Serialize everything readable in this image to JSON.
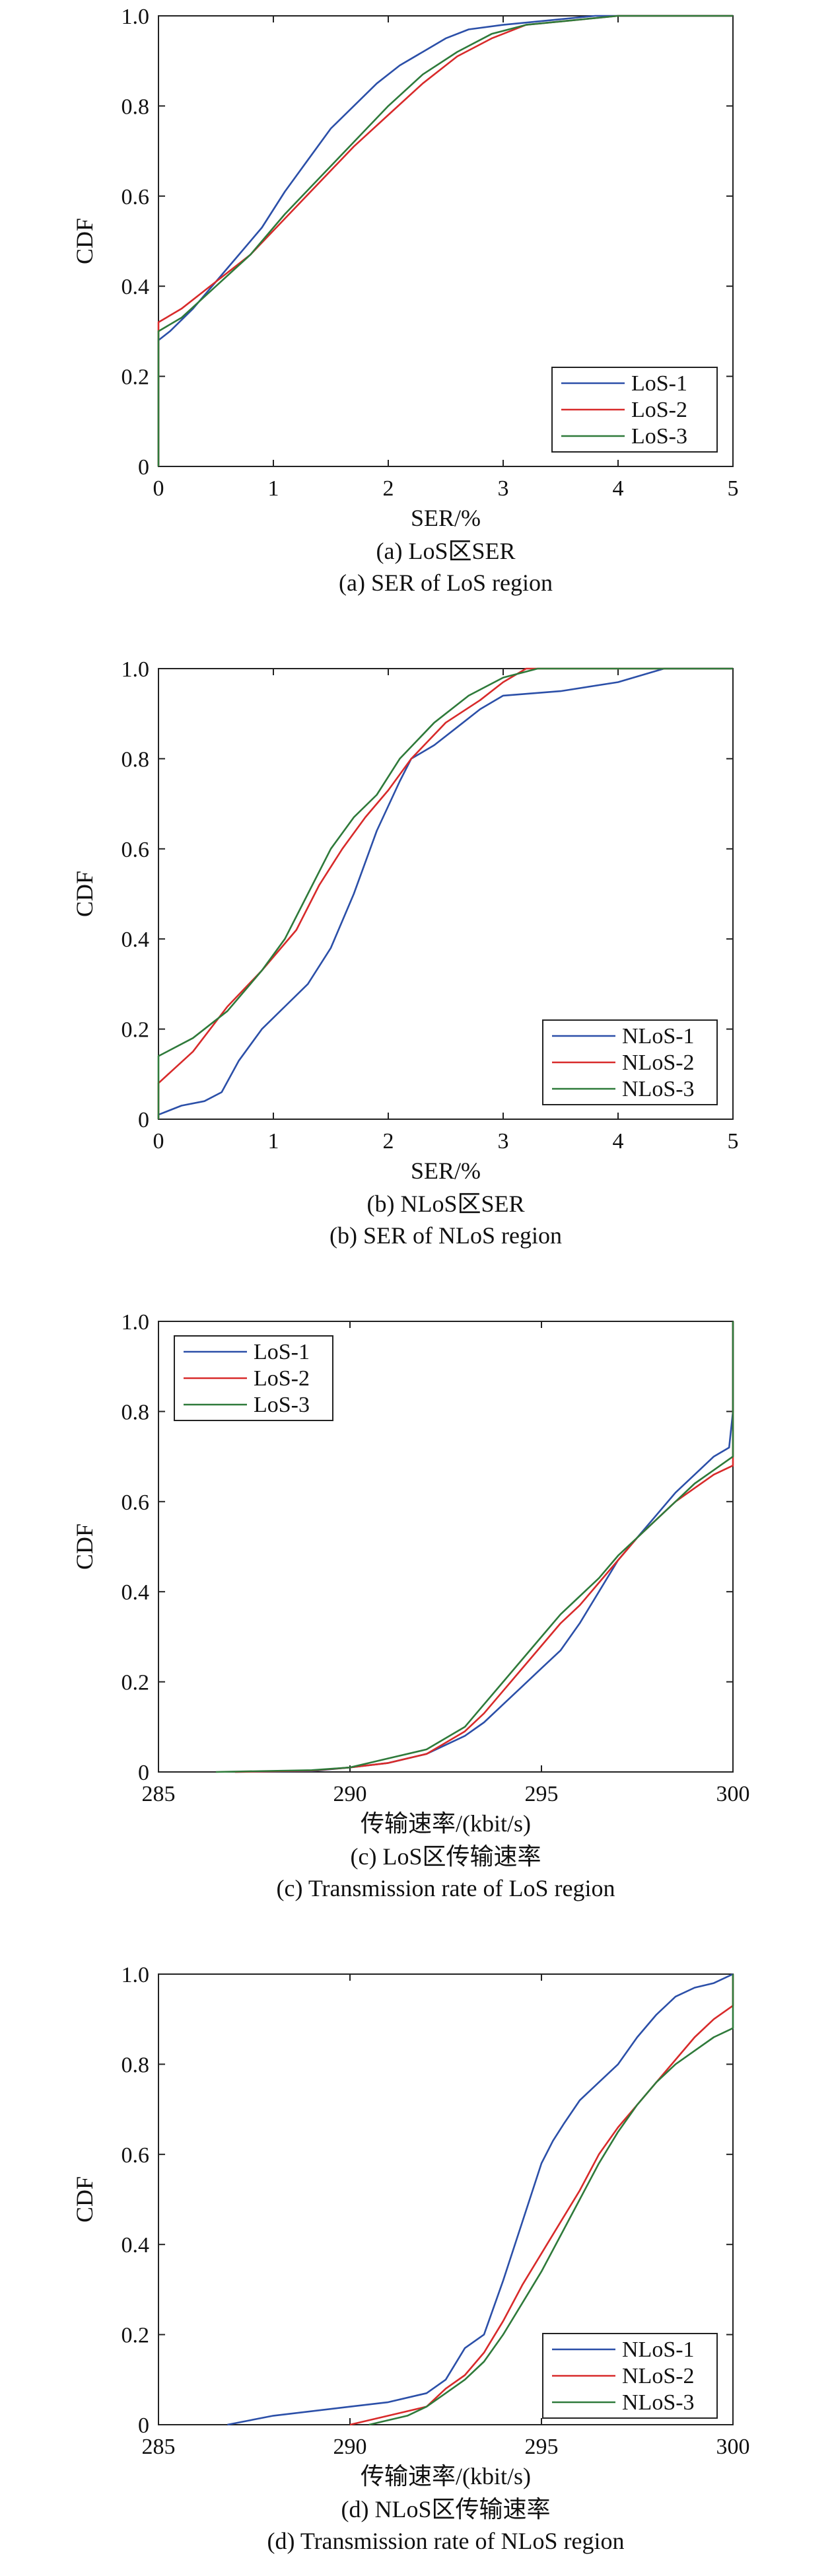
{
  "chart_data": [
    {
      "type": "line",
      "title": "",
      "caption_cn": "(a) LoS区SER",
      "caption_en": "(a) SER of LoS region",
      "xlabel": "SER/%",
      "ylabel": "CDF",
      "xlim": [
        0,
        5
      ],
      "ylim": [
        0,
        1.0
      ],
      "xticks": [
        "0",
        "1",
        "2",
        "3",
        "4",
        "5"
      ],
      "yticks": [
        "0",
        "0.2",
        "0.4",
        "0.6",
        "0.8",
        "1.0"
      ],
      "legend_position": "bottom-right",
      "series": [
        {
          "name": "LoS-1",
          "color": "#2b4fa8",
          "x": [
            0,
            0,
            0.1,
            0.3,
            0.5,
            0.7,
            0.9,
            1.1,
            1.3,
            1.5,
            1.7,
            1.9,
            2.1,
            2.3,
            2.5,
            2.7,
            3.0,
            3.4,
            3.8,
            5.0
          ],
          "y": [
            0,
            0.28,
            0.3,
            0.35,
            0.41,
            0.47,
            0.53,
            0.61,
            0.68,
            0.75,
            0.8,
            0.85,
            0.89,
            0.92,
            0.95,
            0.97,
            0.98,
            0.99,
            1.0,
            1.0
          ]
        },
        {
          "name": "LoS-2",
          "color": "#d82a2a",
          "x": [
            0,
            0,
            0.2,
            0.5,
            0.8,
            1.1,
            1.4,
            1.7,
            2.0,
            2.3,
            2.6,
            2.9,
            3.2,
            3.6,
            4.0,
            5.0
          ],
          "y": [
            0,
            0.32,
            0.35,
            0.41,
            0.47,
            0.55,
            0.63,
            0.71,
            0.78,
            0.85,
            0.91,
            0.95,
            0.98,
            0.99,
            1.0,
            1.0
          ]
        },
        {
          "name": "LoS-3",
          "color": "#2e7a3a",
          "x": [
            0,
            0,
            0.2,
            0.5,
            0.8,
            1.1,
            1.4,
            1.7,
            2.0,
            2.3,
            2.6,
            2.9,
            3.2,
            3.6,
            4.0,
            5.0
          ],
          "y": [
            0,
            0.3,
            0.33,
            0.4,
            0.47,
            0.56,
            0.64,
            0.72,
            0.8,
            0.87,
            0.92,
            0.96,
            0.98,
            0.99,
            1.0,
            1.0
          ]
        }
      ]
    },
    {
      "type": "line",
      "title": "",
      "caption_cn": "(b) NLoS区SER",
      "caption_en": "(b) SER of NLoS region",
      "xlabel": "SER/%",
      "ylabel": "CDF",
      "xlim": [
        0,
        5
      ],
      "ylim": [
        0,
        1.0
      ],
      "xticks": [
        "0",
        "1",
        "2",
        "3",
        "4",
        "5"
      ],
      "yticks": [
        "0",
        "0.2",
        "0.4",
        "0.6",
        "0.8",
        "1.0"
      ],
      "legend_position": "bottom-right",
      "series": [
        {
          "name": "NLoS-1",
          "color": "#2b4fa8",
          "x": [
            0,
            0,
            0.2,
            0.4,
            0.55,
            0.7,
            0.9,
            1.1,
            1.3,
            1.5,
            1.7,
            1.9,
            2.1,
            2.2,
            2.4,
            2.6,
            2.8,
            3.0,
            3.5,
            4.0,
            4.4,
            5.0
          ],
          "y": [
            0,
            0.01,
            0.03,
            0.04,
            0.06,
            0.13,
            0.2,
            0.25,
            0.3,
            0.38,
            0.5,
            0.64,
            0.75,
            0.8,
            0.83,
            0.87,
            0.91,
            0.94,
            0.95,
            0.97,
            1.0,
            1.0
          ]
        },
        {
          "name": "NLoS-2",
          "color": "#d82a2a",
          "x": [
            0,
            0,
            0.3,
            0.6,
            0.9,
            1.2,
            1.4,
            1.6,
            1.8,
            2.0,
            2.2,
            2.5,
            2.8,
            3.0,
            3.2,
            5.0
          ],
          "y": [
            0,
            0.08,
            0.15,
            0.25,
            0.33,
            0.42,
            0.52,
            0.6,
            0.67,
            0.73,
            0.8,
            0.88,
            0.93,
            0.97,
            1.0,
            1.0
          ]
        },
        {
          "name": "NLoS-3",
          "color": "#2e7a3a",
          "x": [
            0,
            0,
            0.3,
            0.6,
            0.9,
            1.1,
            1.3,
            1.5,
            1.7,
            1.9,
            2.1,
            2.4,
            2.7,
            3.0,
            3.3,
            5.0
          ],
          "y": [
            0,
            0.14,
            0.18,
            0.24,
            0.33,
            0.4,
            0.5,
            0.6,
            0.67,
            0.72,
            0.8,
            0.88,
            0.94,
            0.98,
            1.0,
            1.0
          ]
        }
      ]
    },
    {
      "type": "line",
      "title": "",
      "caption_cn": "(c) LoS区传输速率",
      "caption_en": "(c) Transmission rate of LoS region",
      "xlabel": "传输速率/(kbit/s)",
      "ylabel": "CDF",
      "xlim": [
        285,
        300
      ],
      "ylim": [
        0,
        1.0
      ],
      "xticks": [
        "285",
        "290",
        "295",
        "300"
      ],
      "yticks": [
        "0",
        "0.2",
        "0.4",
        "0.6",
        "0.8",
        "1.0"
      ],
      "legend_position": "top-left",
      "series": [
        {
          "name": "LoS-1",
          "color": "#2b4fa8",
          "x": [
            287,
            289,
            290,
            291,
            292,
            293,
            293.5,
            294,
            294.5,
            295,
            295.5,
            296,
            296.5,
            297,
            297.5,
            298,
            298.5,
            299,
            299.5,
            299.9,
            300,
            300
          ],
          "y": [
            0,
            0.002,
            0.01,
            0.02,
            0.04,
            0.08,
            0.11,
            0.15,
            0.19,
            0.23,
            0.27,
            0.33,
            0.4,
            0.47,
            0.52,
            0.57,
            0.62,
            0.66,
            0.7,
            0.72,
            0.8,
            1.0
          ]
        },
        {
          "name": "LoS-2",
          "color": "#d82a2a",
          "x": [
            287,
            289,
            290,
            291,
            292,
            293,
            293.5,
            294,
            294.5,
            295,
            295.5,
            296,
            296.5,
            297,
            297.5,
            298,
            298.5,
            299,
            299.5,
            300,
            300
          ],
          "y": [
            0,
            0.003,
            0.01,
            0.02,
            0.04,
            0.09,
            0.13,
            0.18,
            0.23,
            0.28,
            0.33,
            0.37,
            0.42,
            0.47,
            0.52,
            0.56,
            0.6,
            0.63,
            0.66,
            0.68,
            1.0
          ]
        },
        {
          "name": "LoS-3",
          "color": "#2e7a3a",
          "x": [
            286.5,
            289,
            290,
            291,
            292,
            293,
            293.5,
            294,
            294.5,
            295,
            295.5,
            296,
            296.5,
            297,
            297.5,
            298,
            298.5,
            299,
            299.5,
            300,
            300
          ],
          "y": [
            0,
            0.004,
            0.01,
            0.03,
            0.05,
            0.1,
            0.15,
            0.2,
            0.25,
            0.3,
            0.35,
            0.39,
            0.43,
            0.48,
            0.52,
            0.56,
            0.6,
            0.64,
            0.67,
            0.7,
            1.0
          ]
        }
      ]
    },
    {
      "type": "line",
      "title": "",
      "caption_cn": "(d) NLoS区传输速率",
      "caption_en": "(d) Transmission rate of NLoS region",
      "xlabel": "传输速率/(kbit/s)",
      "ylabel": "CDF",
      "xlim": [
        285,
        300
      ],
      "ylim": [
        0,
        1.0
      ],
      "xticks": [
        "285",
        "290",
        "295",
        "300"
      ],
      "yticks": [
        "0",
        "0.2",
        "0.4",
        "0.6",
        "0.8",
        "1.0"
      ],
      "legend_position": "bottom-right",
      "series": [
        {
          "name": "NLoS-1",
          "color": "#2b4fa8",
          "x": [
            286.8,
            288,
            290,
            291,
            292,
            292.5,
            293,
            293.5,
            294,
            294.5,
            295,
            295.3,
            295.6,
            296,
            296.5,
            297,
            297.5,
            298,
            298.5,
            299,
            299.5,
            300
          ],
          "y": [
            0,
            0.02,
            0.04,
            0.05,
            0.07,
            0.1,
            0.17,
            0.2,
            0.32,
            0.45,
            0.58,
            0.63,
            0.67,
            0.72,
            0.76,
            0.8,
            0.86,
            0.91,
            0.95,
            0.97,
            0.98,
            1.0
          ]
        },
        {
          "name": "NLoS-2",
          "color": "#d82a2a",
          "x": [
            290,
            291,
            292,
            292.5,
            293,
            293.5,
            294,
            294.5,
            295,
            295.5,
            296,
            296.5,
            297,
            297.5,
            298,
            298.5,
            299,
            299.5,
            300,
            300
          ],
          "y": [
            0,
            0.02,
            0.04,
            0.08,
            0.11,
            0.16,
            0.23,
            0.31,
            0.38,
            0.45,
            0.52,
            0.6,
            0.66,
            0.71,
            0.76,
            0.81,
            0.86,
            0.9,
            0.93,
            1.0
          ]
        },
        {
          "name": "NLoS-3",
          "color": "#2e7a3a",
          "x": [
            290.5,
            291.5,
            292,
            292.5,
            293,
            293.5,
            294,
            294.5,
            295,
            295.5,
            296,
            296.5,
            297,
            297.5,
            298,
            298.5,
            299,
            299.5,
            300,
            300
          ],
          "y": [
            0,
            0.02,
            0.04,
            0.07,
            0.1,
            0.14,
            0.2,
            0.27,
            0.34,
            0.42,
            0.5,
            0.58,
            0.65,
            0.71,
            0.76,
            0.8,
            0.83,
            0.86,
            0.88,
            1.0
          ]
        }
      ]
    }
  ]
}
